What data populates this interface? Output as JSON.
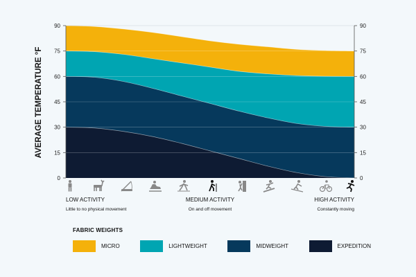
{
  "chart_data": {
    "type": "area",
    "ylabel": "AVERAGE TEMPERATURE °F",
    "ylim": [
      0,
      90
    ],
    "yticks": [
      0,
      15,
      30,
      45,
      60,
      75,
      90
    ],
    "x": [
      0,
      0.1,
      0.2,
      0.3,
      0.4,
      0.5,
      0.6,
      0.7,
      0.8,
      0.9,
      1.0
    ],
    "series": [
      {
        "name": "MICRO",
        "color": "#f4b10b",
        "lower": "LIGHTWEIGHT",
        "values": [
          90,
          89.5,
          88,
          86,
          83.5,
          81,
          79,
          77.5,
          76,
          75.3,
          75
        ]
      },
      {
        "name": "LIGHTWEIGHT",
        "color": "#00a5b2",
        "lower": "MIDWEIGHT",
        "values": [
          75,
          74.6,
          73,
          70.5,
          68,
          65.5,
          63,
          61.5,
          60.5,
          60.1,
          60
        ]
      },
      {
        "name": "MIDWEIGHT",
        "color": "#06395c",
        "lower": "EXPEDITION",
        "values": [
          60,
          59.5,
          57,
          53,
          48.5,
          44,
          39.5,
          35.5,
          32.2,
          30.5,
          30
        ]
      },
      {
        "name": "EXPEDITION",
        "color": "#0e1b33",
        "lower": null,
        "values": [
          30,
          29.5,
          27.5,
          24.5,
          20.5,
          16,
          11.5,
          7,
          3.2,
          0.8,
          0
        ]
      }
    ],
    "activity_icons": [
      "standing-icon",
      "hunting-deer-icon",
      "fishing-icon",
      "snowmobile-icon",
      "cross-country-skiing-icon",
      "hiking-icon",
      "ice-climbing-icon",
      "snowboarding-icon",
      "skiing-icon",
      "cycling-icon",
      "running-icon"
    ],
    "x_annotations": [
      {
        "label": "LOW ACTIVITY",
        "sub": "Little to no physical movement",
        "anchor": "start",
        "pos": 0
      },
      {
        "label": "MEDIUM ACTIVITY",
        "sub": "On and off movement",
        "anchor": "middle",
        "pos": 0.5
      },
      {
        "label": "HIGH ACTIVITY",
        "sub": "Constantly moving",
        "anchor": "end",
        "pos": 1
      }
    ],
    "legend_title": "FABRIC WEIGHTS",
    "legend": [
      {
        "label": "MICRO",
        "color": "#f4b10b"
      },
      {
        "label": "LIGHTWEIGHT",
        "color": "#00a5b2"
      },
      {
        "label": "MIDWEIGHT",
        "color": "#06395c"
      },
      {
        "label": "EXPEDITION",
        "color": "#0e1b33"
      }
    ]
  }
}
